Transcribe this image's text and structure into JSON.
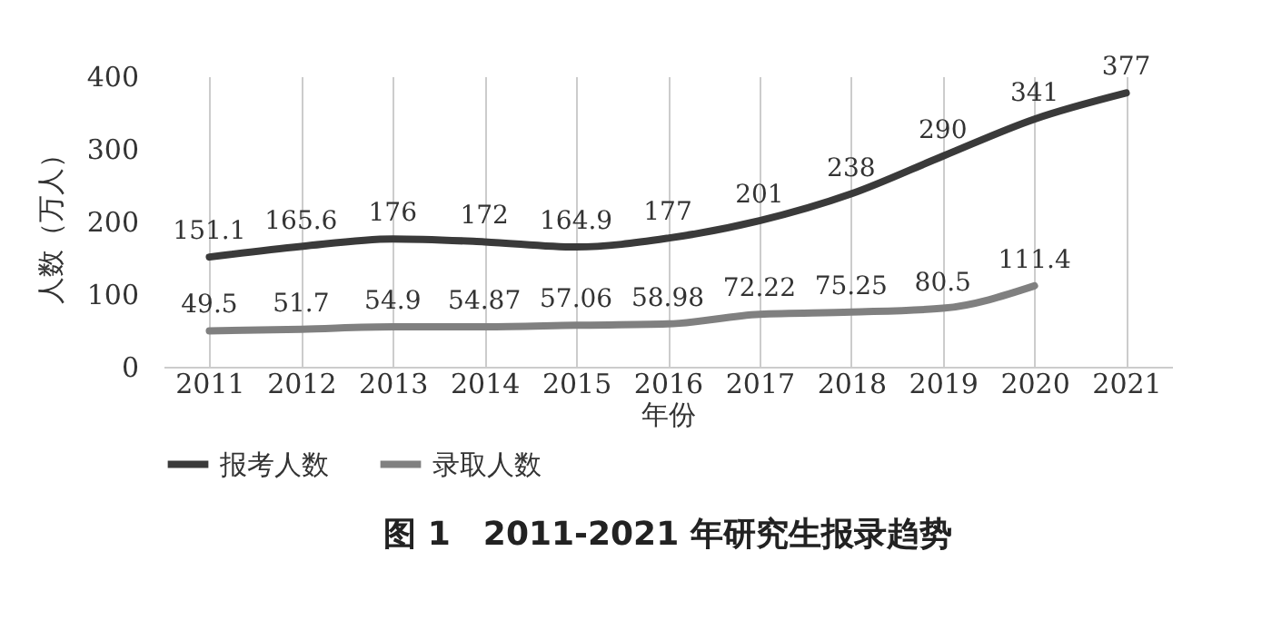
{
  "chart_data": {
    "type": "line",
    "title": "图 1　2011-2021 年研究生报录趋势",
    "xlabel": "年份",
    "ylabel": "人数（万人）",
    "categories": [
      "2011",
      "2012",
      "2013",
      "2014",
      "2015",
      "2016",
      "2017",
      "2018",
      "2019",
      "2020",
      "2021"
    ],
    "series": [
      {
        "name": "报考人数",
        "color": "#3a3a3a",
        "values": [
          151.1,
          165.6,
          176,
          172,
          164.9,
          177,
          201,
          238,
          290,
          341,
          377
        ]
      },
      {
        "name": "录取人数",
        "color": "#808080",
        "values": [
          49.5,
          51.7,
          54.9,
          54.87,
          57.06,
          58.98,
          72.22,
          75.25,
          80.5,
          111.4,
          null
        ]
      }
    ],
    "ylim": [
      0,
      400
    ],
    "yticks": [
      0,
      100,
      200,
      300,
      400
    ],
    "grid": "x",
    "legend": "bottom",
    "data_labels": true,
    "marker": "none",
    "line_style": "solid"
  }
}
